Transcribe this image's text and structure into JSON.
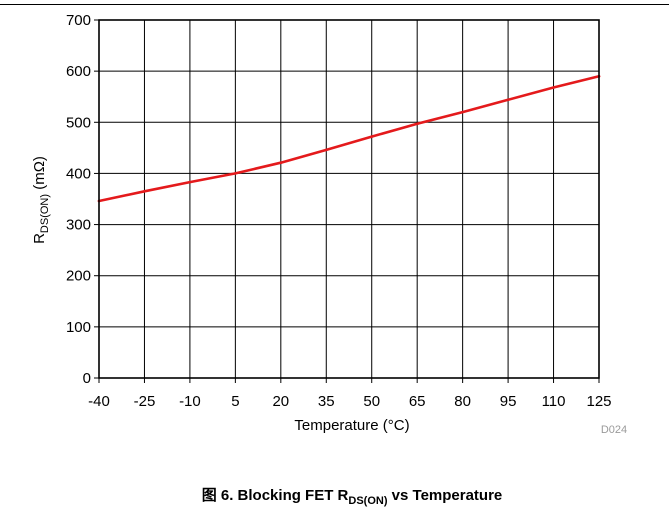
{
  "figure": {
    "code": "D024",
    "caption": {
      "prefix": "图 6. Blocking FET R",
      "subscript": "DS(ON)",
      "suffix": " vs Temperature"
    }
  },
  "chart_data": {
    "type": "line",
    "x": [
      -40,
      -25,
      -10,
      5,
      20,
      35,
      50,
      65,
      80,
      95,
      110,
      125
    ],
    "x_ticks": [
      -40,
      -25,
      -10,
      5,
      20,
      35,
      50,
      65,
      80,
      95,
      110,
      125
    ],
    "y_ticks": [
      0,
      100,
      200,
      300,
      400,
      500,
      600,
      700
    ],
    "xlim": [
      -40,
      125
    ],
    "ylim": [
      0,
      700
    ],
    "grid": true,
    "xlabel": "Temperature (°C)",
    "ylabel": {
      "main": "R",
      "subscript": "DS(ON)",
      "unit": " (mΩ)"
    },
    "series": [
      {
        "color": "#e41a1c",
        "values": [
          346,
          365,
          383,
          400,
          421,
          446,
          472,
          497,
          520,
          544,
          568,
          590
        ]
      }
    ]
  }
}
